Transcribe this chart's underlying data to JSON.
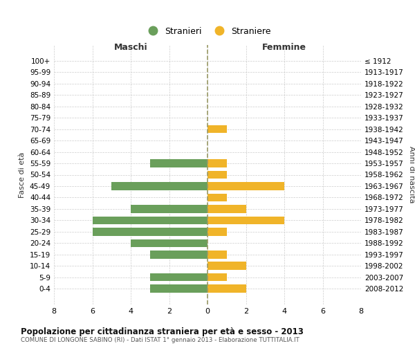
{
  "age_groups": [
    "100+",
    "95-99",
    "90-94",
    "85-89",
    "80-84",
    "75-79",
    "70-74",
    "65-69",
    "60-64",
    "55-59",
    "50-54",
    "45-49",
    "40-44",
    "35-39",
    "30-34",
    "25-29",
    "20-24",
    "15-19",
    "10-14",
    "5-9",
    "0-4"
  ],
  "birth_years": [
    "≤ 1912",
    "1913-1917",
    "1918-1922",
    "1923-1927",
    "1928-1932",
    "1933-1937",
    "1938-1942",
    "1943-1947",
    "1948-1952",
    "1953-1957",
    "1958-1962",
    "1963-1967",
    "1968-1972",
    "1973-1977",
    "1978-1982",
    "1983-1987",
    "1988-1992",
    "1993-1997",
    "1998-2002",
    "2003-2007",
    "2008-2012"
  ],
  "maschi": [
    0,
    0,
    0,
    0,
    0,
    0,
    0,
    0,
    0,
    3,
    0,
    5,
    0,
    4,
    6,
    6,
    4,
    3,
    0,
    3,
    3
  ],
  "femmine": [
    0,
    0,
    0,
    0,
    0,
    0,
    1,
    0,
    0,
    1,
    1,
    4,
    1,
    2,
    4,
    1,
    0,
    1,
    2,
    1,
    2
  ],
  "maschi_color": "#6a9f5b",
  "femmine_color": "#f0b429",
  "title": "Popolazione per cittadinanza straniera per età e sesso - 2013",
  "subtitle": "COMUNE DI LONGONE SABINO (RI) - Dati ISTAT 1° gennaio 2013 - Elaborazione TUTTITALIA.IT",
  "xlabel_left": "Maschi",
  "xlabel_right": "Femmine",
  "ylabel_left": "Fasce di età",
  "ylabel_right": "Anni di nascita",
  "legend_stranieri": "Stranieri",
  "legend_straniere": "Straniere",
  "xlim": 8,
  "background_color": "#ffffff",
  "grid_color": "#cccccc"
}
